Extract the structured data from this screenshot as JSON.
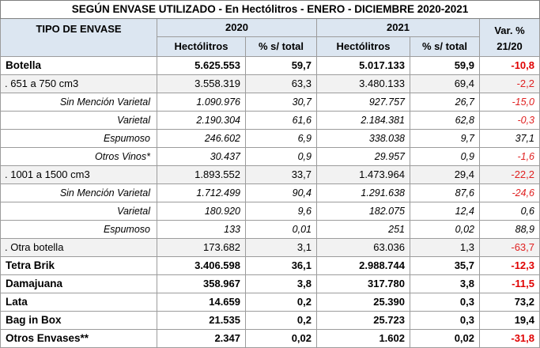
{
  "title": "SEGÚN ENVASE UTILIZADO - En Hectólitros - ENERO - DICIEMBRE 2020-2021",
  "header": {
    "tipo": "TIPO DE ENVASE",
    "year_2020": "2020",
    "year_2021": "2021",
    "var_line1": "Var. %",
    "var_line2": "21/20",
    "hl_2020": "Hectólitros",
    "pct_2020": "% s/ total",
    "hl_2021": "Hectólitros",
    "pct_2021": "% s/ total"
  },
  "rows": [
    {
      "label": "Botella",
      "level": 0,
      "hl_2020": "5.625.553",
      "pct_2020": "59,7",
      "hl_2021": "5.017.133",
      "pct_2021": "59,9",
      "var": "-10,8",
      "negative": true
    },
    {
      "label": ". 651 a 750 cm3",
      "level": 1,
      "hl_2020": "3.558.319",
      "pct_2020": "63,3",
      "hl_2021": "3.480.133",
      "pct_2021": "69,4",
      "var": "-2,2",
      "negative": true
    },
    {
      "label": "Sin Mención Varietal",
      "level": 2,
      "hl_2020": "1.090.976",
      "pct_2020": "30,7",
      "hl_2021": "927.757",
      "pct_2021": "26,7",
      "var": "-15,0",
      "negative": true
    },
    {
      "label": "Varietal",
      "level": 2,
      "hl_2020": "2.190.304",
      "pct_2020": "61,6",
      "hl_2021": "2.184.381",
      "pct_2021": "62,8",
      "var": "-0,3",
      "negative": true
    },
    {
      "label": "Espumoso",
      "level": 2,
      "hl_2020": "246.602",
      "pct_2020": "6,9",
      "hl_2021": "338.038",
      "pct_2021": "9,7",
      "var": "37,1",
      "negative": false
    },
    {
      "label": "Otros Vinos*",
      "level": 2,
      "hl_2020": "30.437",
      "pct_2020": "0,9",
      "hl_2021": "29.957",
      "pct_2021": "0,9",
      "var": "-1,6",
      "negative": true
    },
    {
      "label": ". 1001 a 1500 cm3",
      "level": 1,
      "hl_2020": "1.893.552",
      "pct_2020": "33,7",
      "hl_2021": "1.473.964",
      "pct_2021": "29,4",
      "var": "-22,2",
      "negative": true
    },
    {
      "label": "Sin Mención Varietal",
      "level": 2,
      "hl_2020": "1.712.499",
      "pct_2020": "90,4",
      "hl_2021": "1.291.638",
      "pct_2021": "87,6",
      "var": "-24,6",
      "negative": true
    },
    {
      "label": "Varietal",
      "level": 2,
      "hl_2020": "180.920",
      "pct_2020": "9,6",
      "hl_2021": "182.075",
      "pct_2021": "12,4",
      "var": "0,6",
      "negative": false
    },
    {
      "label": "Espumoso",
      "level": 2,
      "hl_2020": "133",
      "pct_2020": "0,01",
      "hl_2021": "251",
      "pct_2021": "0,02",
      "var": "88,9",
      "negative": false
    },
    {
      "label": ". Otra botella",
      "level": 1,
      "hl_2020": "173.682",
      "pct_2020": "3,1",
      "hl_2021": "63.036",
      "pct_2021": "1,3",
      "var": "-63,7",
      "negative": true
    },
    {
      "label": "Tetra Brik",
      "level": 0,
      "hl_2020": "3.406.598",
      "pct_2020": "36,1",
      "hl_2021": "2.988.744",
      "pct_2021": "35,7",
      "var": "-12,3",
      "negative": true
    },
    {
      "label": "Damajuana",
      "level": 0,
      "hl_2020": "358.967",
      "pct_2020": "3,8",
      "hl_2021": "317.780",
      "pct_2021": "3,8",
      "var": "-11,5",
      "negative": true
    },
    {
      "label": "Lata",
      "level": 0,
      "hl_2020": "14.659",
      "pct_2020": "0,2",
      "hl_2021": "25.390",
      "pct_2021": "0,3",
      "var": "73,2",
      "negative": false
    },
    {
      "label": "Bag in Box",
      "level": 0,
      "hl_2020": "21.535",
      "pct_2020": "0,2",
      "hl_2021": "25.723",
      "pct_2021": "0,3",
      "var": "19,4",
      "negative": false
    },
    {
      "label": "Otros Envases**",
      "level": 0,
      "hl_2020": "2.347",
      "pct_2020": "0,02",
      "hl_2021": "1.602",
      "pct_2021": "0,02",
      "var": "-31,8",
      "negative": true
    }
  ]
}
